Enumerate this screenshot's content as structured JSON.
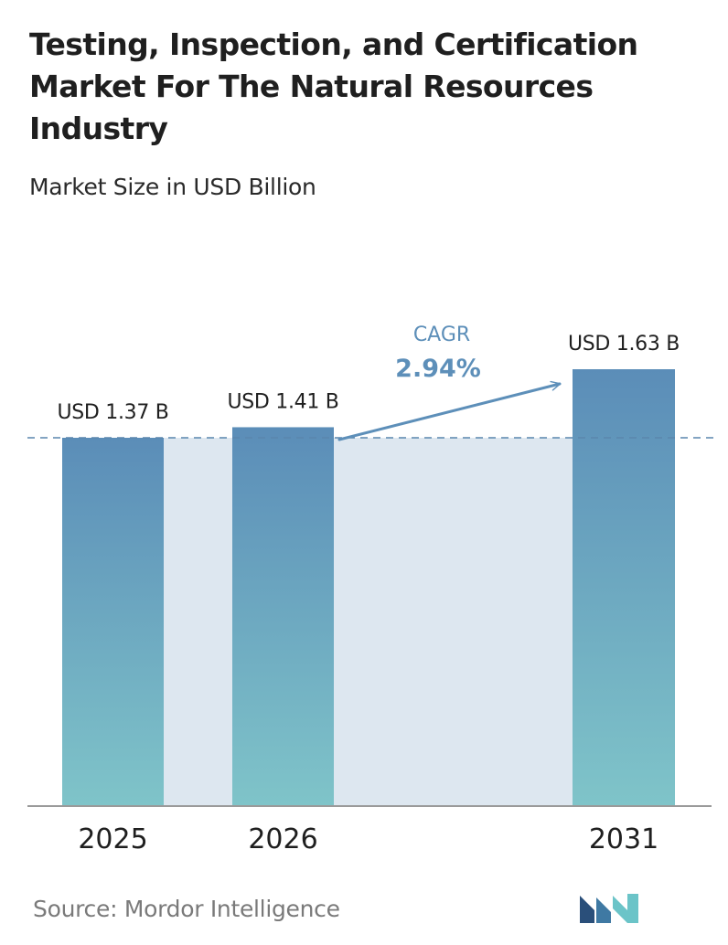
{
  "title": "Testing, Inspection, and Certification Market For The Natural Resources Industry",
  "subtitle": "Market Size in USD Billion",
  "source": "Source:  Mordor Intelligence",
  "colors": {
    "bar_top": "#5b8db8",
    "bar_bottom": "#7fc4c9",
    "band": "#dde7f0",
    "dashed_line": "#5a86ad",
    "cagr_arrow": "#5d8fb9",
    "cagr_label": "#5d8fb9",
    "baseline": "#9a9a9a",
    "text": "#1f1f1f",
    "source_text": "#7a7a7a",
    "logo_left": "#2a4f7a",
    "logo_right": "#6bc4c8"
  },
  "logo": {
    "icon": "mordor-intelligence-logo-icon"
  },
  "chart_data": {
    "type": "bar",
    "categories": [
      "2025",
      "2026",
      "2031"
    ],
    "values": [
      1.37,
      1.41,
      1.63
    ],
    "value_labels": [
      "USD 1.37 B",
      "USD 1.41 B",
      "USD 1.63 B"
    ],
    "ylim": [
      0,
      1.63
    ],
    "grid": false,
    "reference_line": {
      "value": 1.37,
      "style": "dashed"
    },
    "annotation": {
      "label": "CAGR",
      "value": "2.94%",
      "from_category": "2026",
      "to_category": "2031"
    }
  }
}
